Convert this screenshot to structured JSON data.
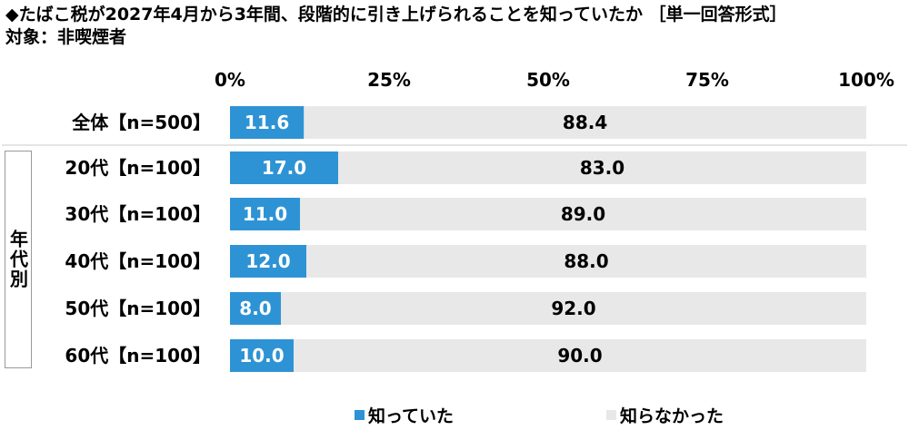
{
  "title": "◆たばこ税が2027年4月から3年間、段階的に引き上げられることを知っていたか ［単一回答形式］",
  "subtitle": "対象：非喫煙者",
  "colors": {
    "knew": "#2e93d4",
    "didnt": "#e8e8e8",
    "divider": "#c8c8c8"
  },
  "chart_data": {
    "type": "bar",
    "orientation": "horizontal",
    "stacked": true,
    "categories": [
      "全体【n=500】",
      "20代【n=100】",
      "30代【n=100】",
      "40代【n=100】",
      "50代【n=100】",
      "60代【n=100】"
    ],
    "series": [
      {
        "name": "知っていた",
        "values": [
          11.6,
          17.0,
          11.0,
          12.0,
          8.0,
          10.0
        ]
      },
      {
        "name": "知らなかった",
        "values": [
          88.4,
          83.0,
          89.0,
          88.0,
          92.0,
          90.0
        ]
      }
    ],
    "value_labels": [
      [
        "11.6",
        "17.0",
        "11.0",
        "12.0",
        "8.0",
        "10.0"
      ],
      [
        "88.4",
        "83.0",
        "89.0",
        "88.0",
        "92.0",
        "90.0"
      ]
    ],
    "xlim": [
      0,
      100
    ],
    "xticks": [
      "0%",
      "25%",
      "50%",
      "75%",
      "100%"
    ],
    "grid": false,
    "legend_position": "bottom",
    "group_label": "年代別"
  }
}
